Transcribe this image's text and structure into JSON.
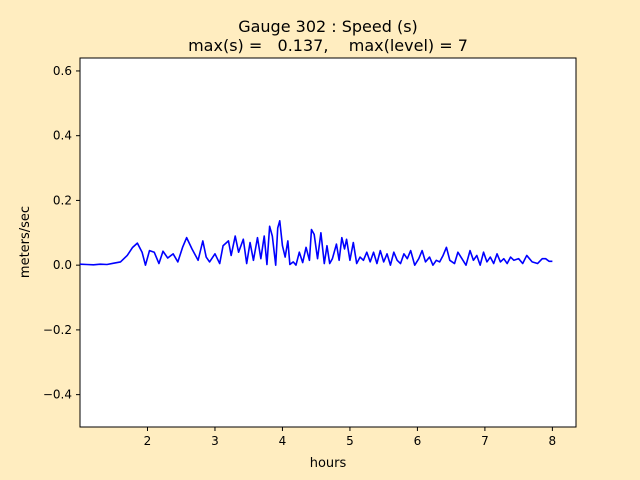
{
  "chart_data": {
    "type": "line",
    "title": "Gauge 302 : Speed (s)",
    "subtitle": "max(s) =   0.137,    max(level) = 7",
    "xlabel": "hours",
    "ylabel": "meters/sec",
    "xlim": [
      1.0,
      8.35
    ],
    "ylim": [
      -0.5,
      0.64
    ],
    "xticks": [
      2,
      3,
      4,
      5,
      6,
      7,
      8
    ],
    "xtick_labels": [
      "2",
      "3",
      "4",
      "5",
      "6",
      "7",
      "8"
    ],
    "yticks": [
      -0.4,
      -0.2,
      0.0,
      0.2,
      0.4,
      0.6
    ],
    "ytick_labels": [
      "−0.4",
      "−0.2",
      "0.0",
      "0.2",
      "0.4",
      "0.6"
    ],
    "grid": false,
    "line_color": "#0000ff",
    "background_color": "#ffedc0",
    "axes_color": "#ffffff",
    "series": [
      {
        "x": [
          1.0,
          1.1,
          1.2,
          1.3,
          1.4,
          1.5,
          1.6,
          1.7,
          1.78,
          1.85,
          1.92,
          1.97,
          2.03,
          2.1,
          2.17,
          2.23,
          2.3,
          2.38,
          2.45,
          2.52,
          2.58,
          2.66,
          2.75,
          2.82,
          2.87,
          2.92,
          3.0,
          3.07,
          3.12,
          3.2,
          3.24,
          3.3,
          3.35,
          3.42,
          3.47,
          3.52,
          3.57,
          3.63,
          3.68,
          3.73,
          3.77,
          3.81,
          3.85,
          3.9,
          3.93,
          3.96,
          4.0,
          4.04,
          4.08,
          4.11,
          4.16,
          4.2,
          4.25,
          4.3,
          4.35,
          4.4,
          4.43,
          4.47,
          4.52,
          4.57,
          4.62,
          4.66,
          4.7,
          4.74,
          4.8,
          4.84,
          4.88,
          4.92,
          4.95,
          5.0,
          5.05,
          5.1,
          5.15,
          5.2,
          5.25,
          5.3,
          5.35,
          5.4,
          5.45,
          5.5,
          5.55,
          5.6,
          5.65,
          5.7,
          5.75,
          5.8,
          5.85,
          5.9,
          5.96,
          6.02,
          6.07,
          6.12,
          6.18,
          6.23,
          6.28,
          6.33,
          6.38,
          6.43,
          6.48,
          6.55,
          6.6,
          6.66,
          6.72,
          6.78,
          6.83,
          6.88,
          6.93,
          6.98,
          7.03,
          7.08,
          7.13,
          7.18,
          7.23,
          7.28,
          7.33,
          7.38,
          7.43,
          7.5,
          7.56,
          7.62,
          7.7,
          7.78,
          7.85,
          7.9,
          7.95,
          8.0
        ],
        "y": [
          0.003,
          0.002,
          0.001,
          0.003,
          0.002,
          0.006,
          0.01,
          0.03,
          0.055,
          0.068,
          0.04,
          0.0,
          0.045,
          0.04,
          0.005,
          0.043,
          0.022,
          0.035,
          0.01,
          0.055,
          0.085,
          0.05,
          0.015,
          0.075,
          0.025,
          0.01,
          0.035,
          0.005,
          0.06,
          0.075,
          0.03,
          0.09,
          0.04,
          0.08,
          0.005,
          0.07,
          0.015,
          0.085,
          0.02,
          0.09,
          0.002,
          0.12,
          0.09,
          0.0,
          0.115,
          0.137,
          0.06,
          0.025,
          0.075,
          0.002,
          0.01,
          0.0,
          0.04,
          0.008,
          0.055,
          0.015,
          0.11,
          0.095,
          0.02,
          0.1,
          0.005,
          0.06,
          0.005,
          0.02,
          0.065,
          0.015,
          0.085,
          0.05,
          0.08,
          0.015,
          0.07,
          0.005,
          0.025,
          0.015,
          0.04,
          0.01,
          0.04,
          0.005,
          0.045,
          0.01,
          0.035,
          0.0,
          0.04,
          0.015,
          0.005,
          0.035,
          0.02,
          0.045,
          0.0,
          0.02,
          0.045,
          0.01,
          0.025,
          0.0,
          0.015,
          0.01,
          0.03,
          0.055,
          0.015,
          0.005,
          0.04,
          0.02,
          0.0,
          0.045,
          0.015,
          0.03,
          0.0,
          0.04,
          0.01,
          0.025,
          0.005,
          0.035,
          0.01,
          0.02,
          0.005,
          0.025,
          0.015,
          0.02,
          0.005,
          0.03,
          0.01,
          0.005,
          0.02,
          0.02,
          0.012,
          0.012
        ]
      }
    ]
  }
}
